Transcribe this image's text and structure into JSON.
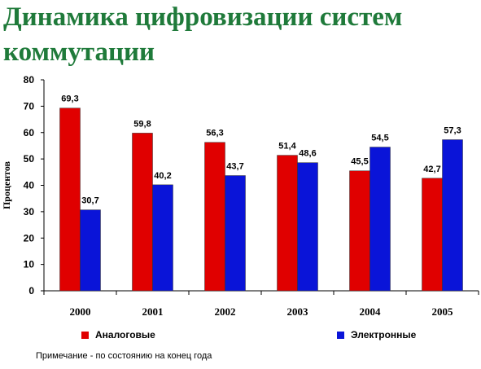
{
  "page": {
    "title": "Динамика цифровизации систем коммутации",
    "note": "Примечание - по состоянию на конец года"
  },
  "chart_data": {
    "type": "bar",
    "categories": [
      "2000",
      "2001",
      "2002",
      "2003",
      "2004",
      "2005"
    ],
    "series": [
      {
        "name": "Аналоговые",
        "color": "#e00000",
        "values": [
          69.3,
          59.8,
          56.3,
          51.4,
          45.5,
          42.7
        ],
        "labels": [
          "69,3",
          "59,8",
          "56,3",
          "51,4",
          "45,5",
          "42,7"
        ]
      },
      {
        "name": "Электронные",
        "color": "#0a14d8",
        "values": [
          30.7,
          40.2,
          43.7,
          48.6,
          54.5,
          57.3
        ],
        "labels": [
          "30,7",
          "40,2",
          "43,7",
          "48,6",
          "54,5",
          "57,3"
        ]
      }
    ],
    "ylabel": "Процентов",
    "xlabel": "",
    "ylim": [
      0,
      80
    ],
    "yticks": [
      0,
      10,
      20,
      30,
      40,
      50,
      60,
      70,
      80
    ],
    "grid": false,
    "legend": "bottom"
  }
}
